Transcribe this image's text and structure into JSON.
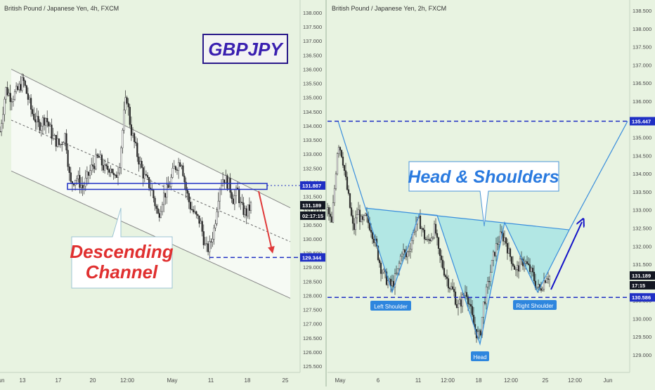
{
  "colors": {
    "background": "#e8f3e1",
    "panel_border": "#9db39a",
    "axis_text": "#4a4a4a",
    "candle": "#2a2a2a",
    "channel_fill": "#f6faf4",
    "channel_line": "#888888",
    "level_line": "#1f2fc4",
    "price_tag": "#1f2fc4",
    "current_tag": "#131722",
    "pattern_fill": "#a8e4e4",
    "pattern_line": "#3a8edc",
    "title_text": "#3a1fb0",
    "title_box_bg": "#f3f3f3",
    "annotation_red": "#e03030",
    "annotation_blue": "#2a7adf",
    "label_bg": "#2e86de",
    "arrow_red": "#e03a3a",
    "arrow_blue": "#1212c8"
  },
  "chart_data": [
    {
      "type": "candlestick",
      "title": "British Pound / Japanese Yen, 4h, FXCM",
      "symbol_box": "GBPJPY",
      "ylim": [
        125.2,
        138.3
      ],
      "y_ticks": [
        "125.500",
        "126.000",
        "126.500",
        "127.000",
        "127.500",
        "128.000",
        "128.500",
        "129.000",
        "129.500",
        "130.000",
        "130.500",
        "131.000",
        "131.500",
        "132.000",
        "132.500",
        "133.000",
        "133.500",
        "134.000",
        "134.500",
        "135.000",
        "135.500",
        "136.000",
        "136.500",
        "137.000",
        "137.500",
        "138.000"
      ],
      "x_ticks": [
        "13",
        "17",
        "20",
        "12:00",
        "May",
        "11",
        "18",
        "25",
        "Jun"
      ],
      "price_tags": [
        {
          "label": "131.887",
          "value": 131.887,
          "style": "level"
        },
        {
          "label": "131.189",
          "value": 131.189,
          "style": "current"
        },
        {
          "label": "02:17:15",
          "value": 130.82,
          "style": "current"
        },
        {
          "label": "129.344",
          "value": 129.344,
          "style": "level"
        }
      ],
      "channel": {
        "upper_start": 136.0,
        "upper_end": 131.1,
        "lower_start": 132.4,
        "lower_end": 127.9,
        "mid_start": 134.2,
        "mid_end": 129.9
      },
      "support_line": 129.344,
      "resistance_box": [
        131.75,
        131.96
      ],
      "annotation": {
        "line1": "Descending",
        "line2": "Channel"
      },
      "candle_path": [
        [
          0,
          133.8
        ],
        [
          8,
          135.3
        ],
        [
          16,
          135.0
        ],
        [
          24,
          135.2
        ],
        [
          33,
          135.6
        ],
        [
          45,
          134.5
        ],
        [
          55,
          134.0
        ],
        [
          65,
          134.3
        ],
        [
          75,
          133.6
        ],
        [
          85,
          133.3
        ],
        [
          93,
          133.7
        ],
        [
          100,
          131.9
        ],
        [
          108,
          132.2
        ],
        [
          118,
          131.8
        ],
        [
          130,
          132.5
        ],
        [
          140,
          132.9
        ],
        [
          150,
          132.4
        ],
        [
          158,
          132.6
        ],
        [
          163,
          132.0
        ],
        [
          170,
          132.7
        ],
        [
          176,
          134.3
        ],
        [
          180,
          135.1
        ],
        [
          186,
          133.9
        ],
        [
          195,
          133.0
        ],
        [
          205,
          132.2
        ],
        [
          215,
          131.8
        ],
        [
          225,
          130.8
        ],
        [
          232,
          131.5
        ],
        [
          240,
          131.8
        ],
        [
          248,
          132.5
        ],
        [
          258,
          132.8
        ],
        [
          264,
          131.8
        ],
        [
          270,
          131.2
        ],
        [
          278,
          130.8
        ],
        [
          285,
          130.6
        ],
        [
          293,
          129.6
        ],
        [
          298,
          129.7
        ],
        [
          305,
          130.4
        ],
        [
          312,
          131.8
        ],
        [
          318,
          132.2
        ],
        [
          326,
          131.9
        ],
        [
          332,
          131.4
        ],
        [
          338,
          131.7
        ],
        [
          343,
          131.1
        ],
        [
          350,
          130.9
        ],
        [
          358,
          131.2
        ]
      ]
    },
    {
      "type": "candlestick",
      "title": "British Pound / Japanese Yen, 2h, FXCM",
      "ylim": [
        128.6,
        138.6
      ],
      "y_ticks": [
        "129.000",
        "129.500",
        "130.000",
        "130.500",
        "131.000",
        "131.500",
        "132.000",
        "132.500",
        "133.000",
        "133.500",
        "134.000",
        "134.500",
        "135.000",
        "135.500",
        "136.000",
        "136.500",
        "137.000",
        "137.500",
        "138.000",
        "138.500"
      ],
      "x_ticks": [
        "May",
        "6",
        "11",
        "12:00",
        "18",
        "12:00",
        "25",
        "12:00",
        "Jun"
      ],
      "price_tags": [
        {
          "label": "135.447",
          "value": 135.447,
          "style": "level"
        },
        {
          "label": "131.189",
          "value": 131.189,
          "style": "current"
        },
        {
          "label": "17:15",
          "value": 130.92,
          "style": "current"
        },
        {
          "label": "130.586",
          "value": 130.586,
          "style": "level"
        }
      ],
      "levels": [
        135.447,
        130.586
      ],
      "neckline": [
        {
          "x": 520,
          "y": 133.05
        },
        {
          "x": 810,
          "y": 132.45
        }
      ],
      "pattern_points": [
        {
          "x": 520,
          "y": 133.05
        },
        {
          "x": 558,
          "y": 130.73
        },
        {
          "x": 597,
          "y": 132.9
        },
        {
          "x": 622,
          "y": 132.85
        },
        {
          "x": 683,
          "y": 129.3
        },
        {
          "x": 718,
          "y": 132.65
        },
        {
          "x": 765,
          "y": 130.73
        },
        {
          "x": 810,
          "y": 132.45
        }
      ],
      "head_top_line": [
        {
          "x": 481,
          "y": 135.45
        },
        {
          "x": 520,
          "y": 133.05
        }
      ],
      "target_line": [
        {
          "x": 810,
          "y": 132.45
        },
        {
          "x": 893,
          "y": 135.447
        }
      ],
      "labels": {
        "left_shoulder": "Left Shoulder",
        "head": "Head",
        "right_shoulder": "Right Shoulder"
      },
      "annotation": "Head & Shoulders",
      "candle_path": [
        [
          466,
          133.0
        ],
        [
          472,
          132.6
        ],
        [
          478,
          134.1
        ],
        [
          481,
          134.9
        ],
        [
          487,
          134.5
        ],
        [
          492,
          133.8
        ],
        [
          497,
          133.2
        ],
        [
          503,
          132.4
        ],
        [
          509,
          133.0
        ],
        [
          515,
          132.6
        ],
        [
          520,
          132.8
        ],
        [
          528,
          132.5
        ],
        [
          535,
          132.0
        ],
        [
          542,
          131.4
        ],
        [
          549,
          131.1
        ],
        [
          556,
          130.9
        ],
        [
          560,
          131.0
        ],
        [
          566,
          131.3
        ],
        [
          572,
          131.9
        ],
        [
          578,
          131.7
        ],
        [
          585,
          132.1
        ],
        [
          591,
          132.6
        ],
        [
          597,
          132.7
        ],
        [
          603,
          132.3
        ],
        [
          608,
          132.1
        ],
        [
          614,
          132.3
        ],
        [
          619,
          132.5
        ],
        [
          624,
          131.8
        ],
        [
          629,
          131.5
        ],
        [
          634,
          131.2
        ],
        [
          640,
          130.9
        ],
        [
          646,
          130.7
        ],
        [
          651,
          130.3
        ],
        [
          657,
          130.5
        ],
        [
          663,
          130.8
        ],
        [
          668,
          130.4
        ],
        [
          673,
          129.9
        ],
        [
          678,
          129.6
        ],
        [
          683,
          129.5
        ],
        [
          688,
          130.4
        ],
        [
          693,
          130.8
        ],
        [
          698,
          131.3
        ],
        [
          703,
          131.8
        ],
        [
          708,
          132.1
        ],
        [
          713,
          132.3
        ],
        [
          719,
          132.2
        ],
        [
          724,
          131.8
        ],
        [
          729,
          131.6
        ],
        [
          734,
          131.3
        ],
        [
          740,
          131.5
        ],
        [
          746,
          131.6
        ],
        [
          752,
          131.4
        ],
        [
          758,
          131.2
        ],
        [
          763,
          130.9
        ],
        [
          768,
          130.8
        ],
        [
          773,
          131.0
        ],
        [
          778,
          131.2
        ],
        [
          783,
          131.15
        ]
      ]
    }
  ]
}
